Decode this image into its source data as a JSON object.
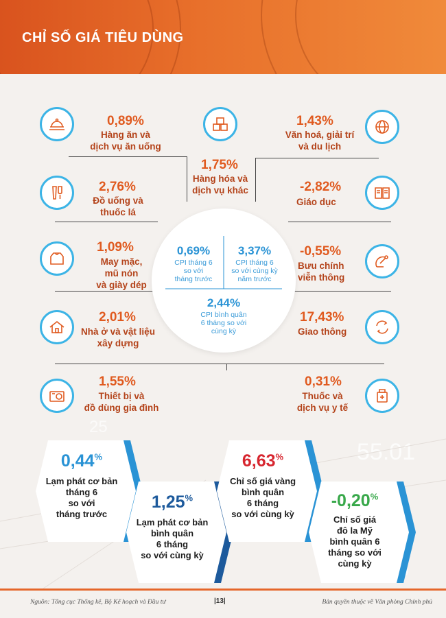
{
  "title": "CHỈ SỐ GIÁ TIÊU DÙNG",
  "categories": [
    {
      "pct": "0,89%",
      "lines": [
        "Hàng ăn và",
        "dịch vụ ăn uống"
      ],
      "icon": "food-tray-icon"
    },
    {
      "pct": "1,75%",
      "lines": [
        "Hàng hóa và",
        "dịch vụ khác"
      ],
      "icon": "boxes-icon"
    },
    {
      "pct": "1,43%",
      "lines": [
        "Văn hoá, giải trí",
        "và du lịch"
      ],
      "icon": "globe-icon"
    },
    {
      "pct": "2,76%",
      "lines": [
        "Đồ uống và",
        "thuốc lá"
      ],
      "icon": "drinks-icon"
    },
    {
      "pct": "-2,82%",
      "lines": [
        "Giáo dục"
      ],
      "icon": "book-icon"
    },
    {
      "pct": "1,09%",
      "lines": [
        "May mặc,",
        "mũ nón",
        "và giày dép"
      ],
      "icon": "clothing-icon"
    },
    {
      "pct": "-0,55%",
      "lines": [
        "Bưu chính",
        "viễn thông"
      ],
      "icon": "satellite-icon"
    },
    {
      "pct": "2,01%",
      "lines": [
        "Nhà ở và vật liệu",
        "xây dựng"
      ],
      "icon": "house-icon"
    },
    {
      "pct": "17,43%",
      "lines": [
        "Giao thông"
      ],
      "icon": "transport-icon"
    },
    {
      "pct": "1,55%",
      "lines": [
        "Thiết bị và",
        "đồ dùng gia đình"
      ],
      "icon": "appliance-icon"
    },
    {
      "pct": "0,31%",
      "lines": [
        "Thuốc và",
        "dịch vụ y tế"
      ],
      "icon": "medicine-icon"
    }
  ],
  "cpi": [
    {
      "pct": "0,69%",
      "lines": [
        "CPI tháng 6",
        "so với",
        "tháng trước"
      ]
    },
    {
      "pct": "3,37%",
      "lines": [
        "CPI tháng 6",
        "so với cùng kỳ",
        "năm trước"
      ]
    },
    {
      "pct": "2,44%",
      "lines": [
        "CPI bình quân",
        "6 tháng so với",
        "cùng kỳ"
      ]
    }
  ],
  "hexes": [
    {
      "value": "0,44",
      "unit": "%",
      "lines": [
        "Lạm phát cơ bản",
        "tháng 6",
        "so với",
        "tháng trước"
      ],
      "color": "#2a93d5"
    },
    {
      "value": "1,25",
      "unit": "%",
      "lines": [
        "Lạm phát cơ bản",
        "bình quân",
        "6 tháng",
        "so với cùng kỳ"
      ],
      "color": "#1d5a9c"
    },
    {
      "value": "6,63",
      "unit": "%",
      "lines": [
        "Chỉ số giá vàng",
        "bình quân",
        "6 tháng",
        "so với cùng kỳ"
      ],
      "color": "#d7262f"
    },
    {
      "value": "-0,20",
      "unit": "%",
      "lines": [
        "Chỉ số giá",
        "đô la Mỹ",
        "bình quân 6",
        "tháng so với",
        "cùng kỳ"
      ],
      "color": "#38a84a"
    }
  ],
  "footer": {
    "source": "Nguồn: Tổng cục Thống kê, Bộ Kế hoạch và Đầu tư",
    "page": "|13|",
    "copyright": "Bản quyền thuộc về Văn phòng Chính phủ"
  },
  "colors": {
    "accent": "#e05a1f",
    "ring": "#3cb4e6",
    "header": "#e06a28"
  }
}
